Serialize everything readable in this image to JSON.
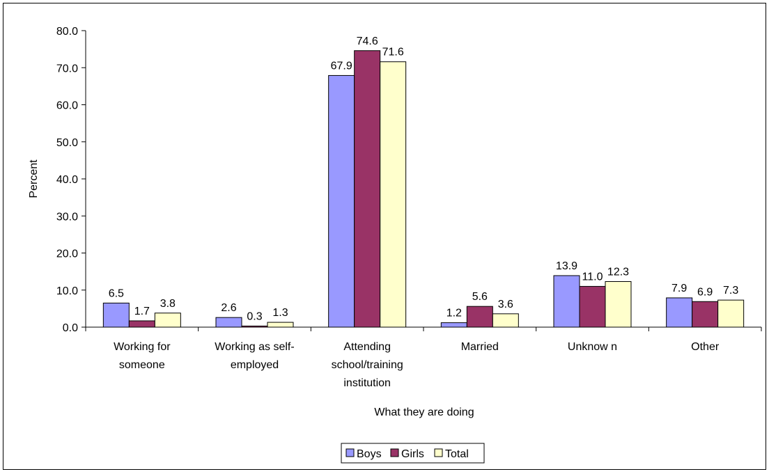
{
  "chart_data": {
    "type": "bar",
    "title": "",
    "xlabel": "What they are doing",
    "ylabel": "Percent",
    "ylim": [
      0,
      80
    ],
    "yticks": [
      "0.0",
      "10.0",
      "20.0",
      "30.0",
      "40.0",
      "50.0",
      "60.0",
      "70.0",
      "80.0"
    ],
    "grid": false,
    "legend_position": "bottom-center",
    "categories": [
      [
        "Working for",
        "someone"
      ],
      [
        "Working as self-",
        "employed"
      ],
      [
        "Attending",
        "school/training",
        "institution"
      ],
      [
        "Married"
      ],
      [
        "Unknow n"
      ],
      [
        "Other"
      ]
    ],
    "series": [
      {
        "name": "Boys",
        "color": "#9999ff",
        "values": [
          6.5,
          2.6,
          67.9,
          1.2,
          13.9,
          7.9
        ],
        "labels": [
          "6.5",
          "2.6",
          "67.9",
          "1.2",
          "13.9",
          "7.9"
        ]
      },
      {
        "name": "Girls",
        "color": "#993366",
        "values": [
          1.7,
          0.3,
          74.6,
          5.6,
          11.0,
          6.9
        ],
        "labels": [
          "1.7",
          "0.3",
          "74.6",
          "5.6",
          "11.0",
          "6.9"
        ]
      },
      {
        "name": "Total",
        "color": "#ffffcc",
        "values": [
          3.8,
          1.3,
          71.6,
          3.6,
          12.3,
          7.3
        ],
        "labels": [
          "3.8",
          "1.3",
          "71.6",
          "3.6",
          "12.3",
          "7.3"
        ]
      }
    ]
  }
}
